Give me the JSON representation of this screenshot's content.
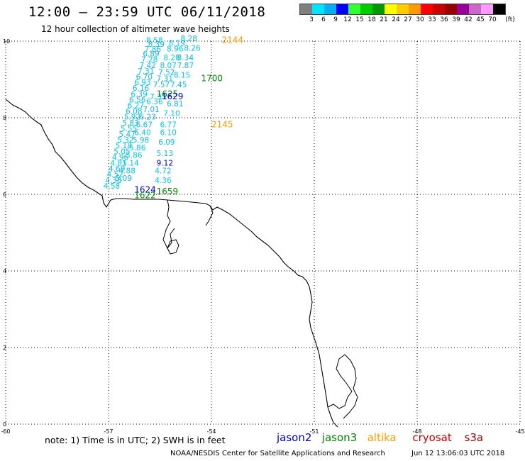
{
  "header": {
    "title": "12:00 – 23:59 UTC 06/11/2018",
    "subtitle": "12 hour collection of altimeter wave heights"
  },
  "scale": {
    "unit": "(ft)",
    "bins": [
      {
        "label": "3",
        "color": "#7f7f7f"
      },
      {
        "label": "6",
        "color": "#00e5ff"
      },
      {
        "label": "9",
        "color": "#00b0f0"
      },
      {
        "label": "12",
        "color": "#0000ff"
      },
      {
        "label": "15",
        "color": "#33ff33"
      },
      {
        "label": "18",
        "color": "#00cc00"
      },
      {
        "label": "21",
        "color": "#009900"
      },
      {
        "label": "24",
        "color": "#ffff00"
      },
      {
        "label": "27",
        "color": "#ffcc00"
      },
      {
        "label": "30",
        "color": "#ff9900"
      },
      {
        "label": "33",
        "color": "#ff0000"
      },
      {
        "label": "36",
        "color": "#cc0000"
      },
      {
        "label": "39",
        "color": "#990000"
      },
      {
        "label": "42",
        "color": "#990099"
      },
      {
        "label": "45",
        "color": "#cc66cc"
      },
      {
        "label": "70",
        "color": "#ff99ff"
      },
      {
        "label": "",
        "color": "#000000"
      }
    ]
  },
  "axes": {
    "x_ticks": [
      "-60",
      "-57",
      "-54",
      "-51",
      "-48",
      "-45"
    ],
    "y_ticks": [
      "0",
      "2",
      "4",
      "6",
      "8",
      "10"
    ]
  },
  "tracks": {
    "times": [
      {
        "text": "2144",
        "color": "#ff9900",
        "lon": -53.7,
        "lat": 9.95
      },
      {
        "text": "1700",
        "color": "#008800",
        "lon": -54.3,
        "lat": 8.95
      },
      {
        "text": "1625",
        "color": "#008800",
        "lon": -55.6,
        "lat": 8.55
      },
      {
        "text": "1629",
        "color": "#0000cc",
        "lon": -55.45,
        "lat": 8.48
      },
      {
        "text": "2145",
        "color": "#ff9900",
        "lon": -54.0,
        "lat": 7.75
      },
      {
        "text": "1624",
        "color": "#0000cc",
        "lon": -56.25,
        "lat": 6.05
      },
      {
        "text": "1622",
        "color": "#008800",
        "lon": -56.25,
        "lat": 5.9
      },
      {
        "text": "1659",
        "color": "#008800",
        "lon": -55.6,
        "lat": 6.0
      }
    ],
    "swh_left": [
      {
        "text": "8.58",
        "lon": -55.9,
        "lat": 9.95
      },
      {
        "text": "8.39",
        "lon": -55.85,
        "lat": 9.85
      },
      {
        "text": "7.86",
        "lon": -55.95,
        "lat": 9.72
      },
      {
        "text": "6.89",
        "lon": -56.0,
        "lat": 9.6
      },
      {
        "text": "7.28",
        "lon": -56.05,
        "lat": 9.45
      },
      {
        "text": "7.42",
        "lon": -56.1,
        "lat": 9.3
      },
      {
        "text": "7.31",
        "lon": -56.15,
        "lat": 9.15
      },
      {
        "text": "6.70",
        "lon": -56.2,
        "lat": 9.0
      },
      {
        "text": "6.93",
        "lon": -56.25,
        "lat": 8.85
      },
      {
        "text": "6.16",
        "lon": -56.3,
        "lat": 8.7
      },
      {
        "text": "6.39",
        "lon": -56.35,
        "lat": 8.55
      },
      {
        "text": "6.56",
        "lon": -56.4,
        "lat": 8.4
      },
      {
        "text": "6.27",
        "lon": -56.45,
        "lat": 8.25
      },
      {
        "text": "6.08",
        "lon": -56.5,
        "lat": 8.1
      },
      {
        "text": "5.92",
        "lon": -56.55,
        "lat": 7.95
      },
      {
        "text": "5.83",
        "lon": -56.6,
        "lat": 7.8
      },
      {
        "text": "5.55",
        "lon": -56.65,
        "lat": 7.65
      },
      {
        "text": "5.47",
        "lon": -56.7,
        "lat": 7.5
      },
      {
        "text": "5.32",
        "lon": -56.75,
        "lat": 7.35
      },
      {
        "text": "5.18",
        "lon": -56.8,
        "lat": 7.2
      },
      {
        "text": "5.05",
        "lon": -56.85,
        "lat": 7.05
      },
      {
        "text": "4.96",
        "lon": -56.9,
        "lat": 6.9
      },
      {
        "text": "4.81",
        "lon": -56.95,
        "lat": 6.75
      },
      {
        "text": "4.69",
        "lon": -57.0,
        "lat": 6.6
      },
      {
        "text": "4.52",
        "lon": -57.05,
        "lat": 6.45
      },
      {
        "text": "4.38",
        "lon": -57.1,
        "lat": 6.3
      },
      {
        "text": "4.58",
        "lon": -57.15,
        "lat": 6.15
      }
    ],
    "swh_right": [
      {
        "text": "8.28",
        "lon": -54.9,
        "lat": 10.0
      },
      {
        "text": "8.19",
        "lon": -55.25,
        "lat": 9.88
      },
      {
        "text": "8.26",
        "lon": -54.8,
        "lat": 9.75
      },
      {
        "text": "8.96",
        "lon": -55.3,
        "lat": 9.73
      },
      {
        "text": "8.34",
        "lon": -55.0,
        "lat": 9.5
      },
      {
        "text": "8.28",
        "lon": -55.4,
        "lat": 9.5
      },
      {
        "text": "7.87",
        "lon": -55.0,
        "lat": 9.3
      },
      {
        "text": "8.07",
        "lon": -55.5,
        "lat": 9.3
      },
      {
        "text": "7.52",
        "lon": -55.55,
        "lat": 9.12
      },
      {
        "text": "8.15",
        "lon": -55.1,
        "lat": 9.05
      },
      {
        "text": "7.31",
        "lon": -55.6,
        "lat": 8.95
      },
      {
        "text": "7.45",
        "lon": -55.2,
        "lat": 8.8
      },
      {
        "text": "7.57",
        "lon": -55.7,
        "lat": 8.8
      },
      {
        "text": "7.35",
        "lon": -55.8,
        "lat": 8.48
      },
      {
        "text": "6.81",
        "lon": -55.3,
        "lat": 8.3
      },
      {
        "text": "6.36",
        "lon": -55.9,
        "lat": 8.35
      },
      {
        "text": "7.01",
        "lon": -56.0,
        "lat": 8.15
      },
      {
        "text": "7.10",
        "lon": -55.4,
        "lat": 8.05
      },
      {
        "text": "6.23",
        "lon": -56.1,
        "lat": 7.95
      },
      {
        "text": "6.77",
        "lon": -55.5,
        "lat": 7.75
      },
      {
        "text": "6.67",
        "lon": -56.2,
        "lat": 7.75
      },
      {
        "text": "6.10",
        "lon": -55.5,
        "lat": 7.55
      },
      {
        "text": "6.40",
        "lon": -56.25,
        "lat": 7.55
      },
      {
        "text": "6.09",
        "lon": -55.55,
        "lat": 7.3
      },
      {
        "text": "5.98",
        "lon": -56.3,
        "lat": 7.35
      },
      {
        "text": "5.86",
        "lon": -56.4,
        "lat": 7.15
      },
      {
        "text": "5.13",
        "lon": -55.6,
        "lat": 7.0
      },
      {
        "text": "5.86",
        "lon": -56.5,
        "lat": 6.95
      },
      {
        "text": "9.12",
        "lon": -55.6,
        "lat": 6.75
      },
      {
        "text": "5.14",
        "lon": -56.6,
        "lat": 6.75
      },
      {
        "text": "4.72",
        "lon": -55.65,
        "lat": 6.55
      },
      {
        "text": "4.88",
        "lon": -56.7,
        "lat": 6.55
      },
      {
        "text": "5.09",
        "lon": -56.8,
        "lat": 6.35
      },
      {
        "text": "4.36",
        "lon": -55.65,
        "lat": 6.3
      }
    ]
  },
  "footer": {
    "note": "note: 1) Time is in UTC; 2) SWH is in feet",
    "satellites": [
      {
        "name": "jason2",
        "color": "#0000cc"
      },
      {
        "name": "jason3",
        "color": "#008800"
      },
      {
        "name": "altika",
        "color": "#ff9900"
      },
      {
        "name": "cryosat",
        "color": "#cc0000"
      },
      {
        "name": "s3a",
        "color": "#990000"
      }
    ],
    "credit": "NOAA/NESDIS Center for Satellite Applications and Research",
    "timestamp": "Jun 12 13:06:03 UTC 2018"
  }
}
